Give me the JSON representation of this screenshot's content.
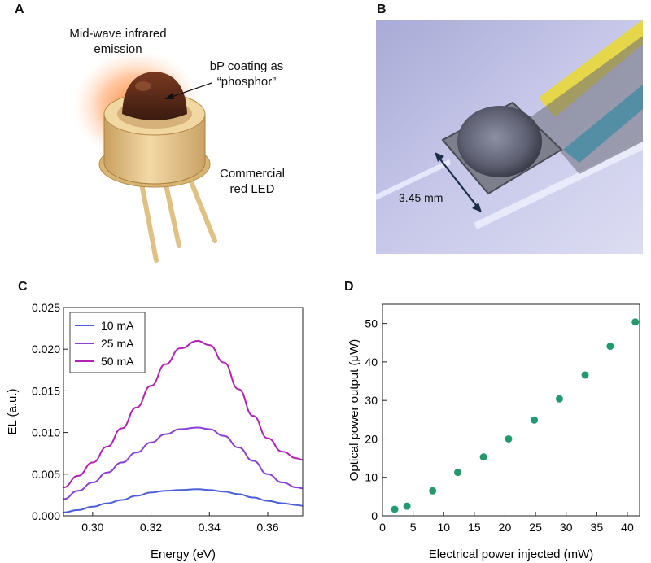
{
  "panels": {
    "a": {
      "letter": "A",
      "label_emission_line1": "Mid-wave infrared",
      "label_emission_line2": "emission",
      "label_coating_line1": "bP coating as",
      "label_coating_line2": "“phosphor”",
      "label_led_line1": "Commercial",
      "label_led_line2": "red LED"
    },
    "b": {
      "letter": "B",
      "scale_label": "3.45 mm"
    },
    "c": {
      "letter": "C"
    },
    "d": {
      "letter": "D"
    }
  },
  "colors": {
    "series_10": "#4a5fd8",
    "series_25": "#8a3fd6",
    "series_50": "#b323b3",
    "scatter": "#239a6e"
  },
  "chart_data": [
    {
      "id": "C",
      "type": "line",
      "xlabel": "Energy (eV)",
      "ylabel": "EL (a.u.)",
      "xlim": [
        0.29,
        0.372
      ],
      "ylim": [
        0.0,
        0.025
      ],
      "xticks": [
        0.3,
        0.32,
        0.34,
        0.36
      ],
      "xtick_labels": [
        "0.30",
        "0.32",
        "0.34",
        "0.36"
      ],
      "yticks": [
        0.0,
        0.005,
        0.01,
        0.015,
        0.02,
        0.025
      ],
      "ytick_labels": [
        "0.000",
        "0.005",
        "0.010",
        "0.015",
        "0.020",
        "0.025"
      ],
      "legend_position": "top-left",
      "series": [
        {
          "name": "10 mA",
          "x": [
            0.29,
            0.295,
            0.3,
            0.305,
            0.31,
            0.315,
            0.32,
            0.325,
            0.33,
            0.336,
            0.34,
            0.345,
            0.35,
            0.355,
            0.36,
            0.365,
            0.37,
            0.372
          ],
          "y": [
            0.0004,
            0.0007,
            0.0011,
            0.0015,
            0.0019,
            0.0024,
            0.0028,
            0.003,
            0.0031,
            0.0032,
            0.0031,
            0.0029,
            0.0026,
            0.0022,
            0.0018,
            0.0015,
            0.0013,
            0.0012
          ]
        },
        {
          "name": "25 mA",
          "x": [
            0.29,
            0.295,
            0.3,
            0.305,
            0.31,
            0.315,
            0.32,
            0.325,
            0.33,
            0.336,
            0.34,
            0.345,
            0.35,
            0.355,
            0.36,
            0.365,
            0.37,
            0.372
          ],
          "y": [
            0.002,
            0.003,
            0.004,
            0.0052,
            0.0064,
            0.0076,
            0.0088,
            0.0098,
            0.0104,
            0.0106,
            0.0104,
            0.0096,
            0.0082,
            0.0066,
            0.005,
            0.004,
            0.0034,
            0.0033
          ]
        },
        {
          "name": "50 mA",
          "x": [
            0.29,
            0.295,
            0.3,
            0.305,
            0.31,
            0.315,
            0.32,
            0.325,
            0.33,
            0.336,
            0.34,
            0.345,
            0.35,
            0.355,
            0.36,
            0.365,
            0.37,
            0.372
          ],
          "y": [
            0.0034,
            0.0048,
            0.0064,
            0.0083,
            0.0105,
            0.013,
            0.0156,
            0.0182,
            0.0201,
            0.021,
            0.0205,
            0.0184,
            0.0152,
            0.012,
            0.0093,
            0.0077,
            0.0069,
            0.0067
          ]
        }
      ]
    },
    {
      "id": "D",
      "type": "scatter",
      "xlabel": "Electrical power injected (mW)",
      "ylabel": "Optical power output (μW)",
      "xlim": [
        0,
        42
      ],
      "ylim": [
        0,
        55
      ],
      "xticks": [
        0,
        5,
        10,
        15,
        20,
        25,
        30,
        35,
        40
      ],
      "xtick_labels": [
        "0",
        "5",
        "10",
        "15",
        "20",
        "25",
        "30",
        "35",
        "40"
      ],
      "yticks": [
        0,
        10,
        20,
        30,
        40,
        50
      ],
      "ytick_labels": [
        "0",
        "10",
        "20",
        "30",
        "40",
        "50"
      ],
      "x": [
        2.0,
        4.0,
        8.2,
        12.3,
        16.5,
        20.6,
        24.8,
        28.9,
        33.1,
        37.2,
        41.3
      ],
      "y": [
        1.7,
        2.5,
        6.5,
        11.3,
        15.3,
        20.0,
        24.9,
        30.4,
        36.6,
        44.1,
        50.4
      ]
    }
  ]
}
